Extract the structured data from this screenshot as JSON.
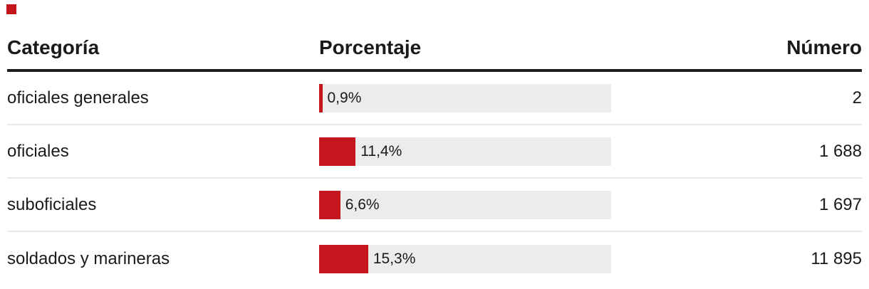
{
  "legend": {
    "marker_color": "#c4161c"
  },
  "table": {
    "columns": {
      "category": "Categoría",
      "percentage": "Porcentaje",
      "number": "Número"
    },
    "rows": [
      {
        "category": "oficiales generales",
        "percent_label": "0,9%",
        "percent_value": 0.9,
        "number": "2"
      },
      {
        "category": "oficiales",
        "percent_label": "11,4%",
        "percent_value": 11.4,
        "number": "1 688"
      },
      {
        "category": "suboficiales",
        "percent_label": "6,6%",
        "percent_value": 6.6,
        "number": "1 697"
      },
      {
        "category": "soldados y marineras",
        "percent_label": "15,3%",
        "percent_value": 15.3,
        "number": "11 895"
      }
    ]
  },
  "chart_data": {
    "type": "table",
    "title": "",
    "columns": [
      "Categoría",
      "Porcentaje",
      "Número"
    ],
    "categories": [
      "oficiales generales",
      "oficiales",
      "suboficiales",
      "soldados y marineras"
    ],
    "series": [
      {
        "name": "Porcentaje",
        "values": [
          0.9,
          11.4,
          6.6,
          15.3
        ]
      },
      {
        "name": "Número",
        "values": [
          2,
          1688,
          1697,
          11895
        ]
      }
    ],
    "bar_color": "#c4161c",
    "bar_track_color": "#ececec",
    "legend_position": "top-left",
    "grid": false
  }
}
